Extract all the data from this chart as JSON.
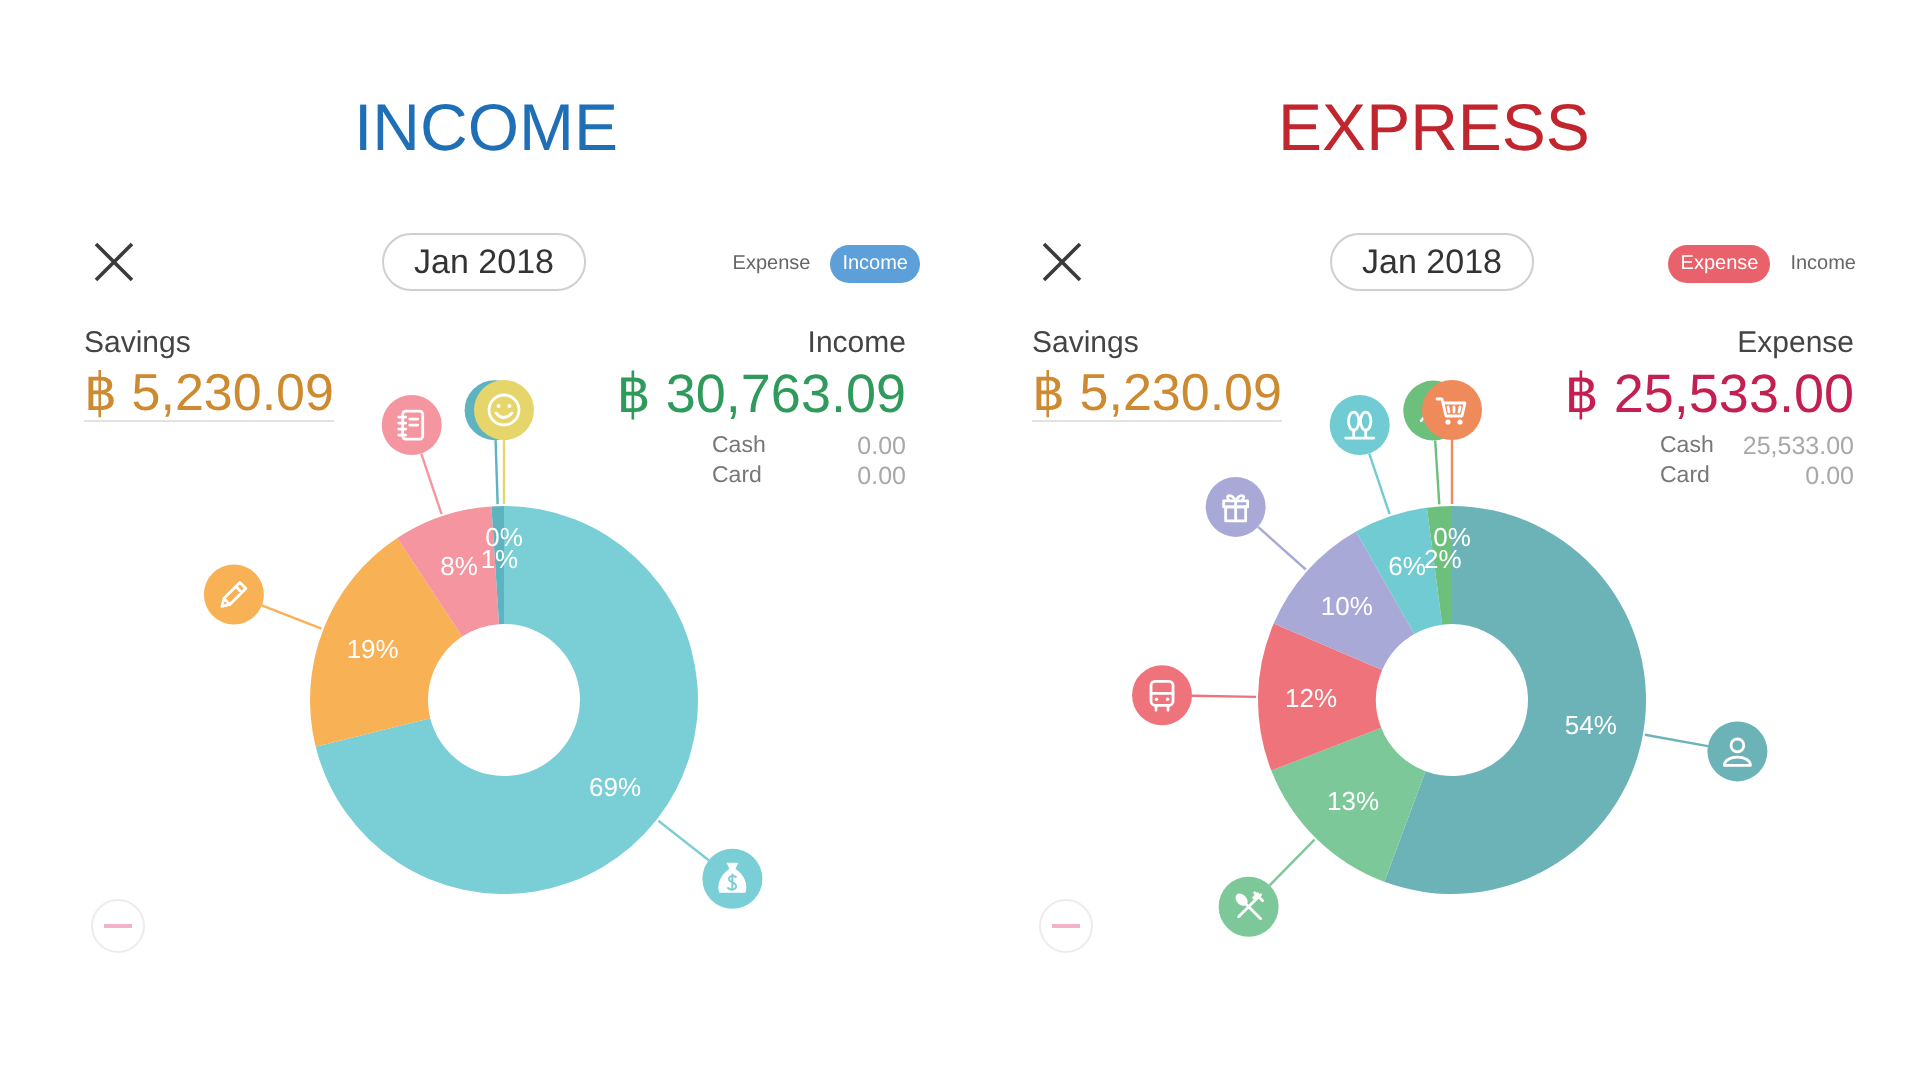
{
  "chart_data": [
    {
      "type": "donut",
      "title": "INCOME",
      "categories": [
        null,
        null,
        null,
        null,
        null
      ],
      "values": [
        69,
        19,
        8,
        1,
        0
      ],
      "colors": [
        "#7acfd6",
        "#f8b155",
        "#f4959f",
        "#5db3bf",
        "#e5d56a"
      ],
      "value_labels": [
        "69%",
        "19%",
        "8%",
        "1%",
        "0%"
      ],
      "annotations": [
        "Jan 2018",
        "Expense",
        "Income",
        "Savings",
        "฿ 5,230.09",
        "Income",
        "฿ 30,763.09",
        "Cash",
        "0.00",
        "Card",
        "0.00"
      ]
    },
    {
      "type": "donut",
      "title": "EXPRESS",
      "categories": [
        null,
        null,
        null,
        null,
        null,
        null,
        null
      ],
      "values": [
        54,
        13,
        12,
        10,
        6,
        2,
        0
      ],
      "colors": [
        "#6cb3b8",
        "#7dc898",
        "#ef737b",
        "#a9a9d7",
        "#70cbd3",
        "#6dc07c",
        "#ef8a5a"
      ],
      "value_labels": [
        "54%",
        "13%",
        "12%",
        "10%",
        "6%",
        "2%",
        "0%"
      ],
      "annotations": [
        "Jan 2018",
        "Expense",
        "Income",
        "Savings",
        "฿ 5,230.09",
        "Expense",
        "฿ 25,533.00",
        "Cash",
        "25,533.00",
        "Card",
        "0.00"
      ]
    }
  ]
}
